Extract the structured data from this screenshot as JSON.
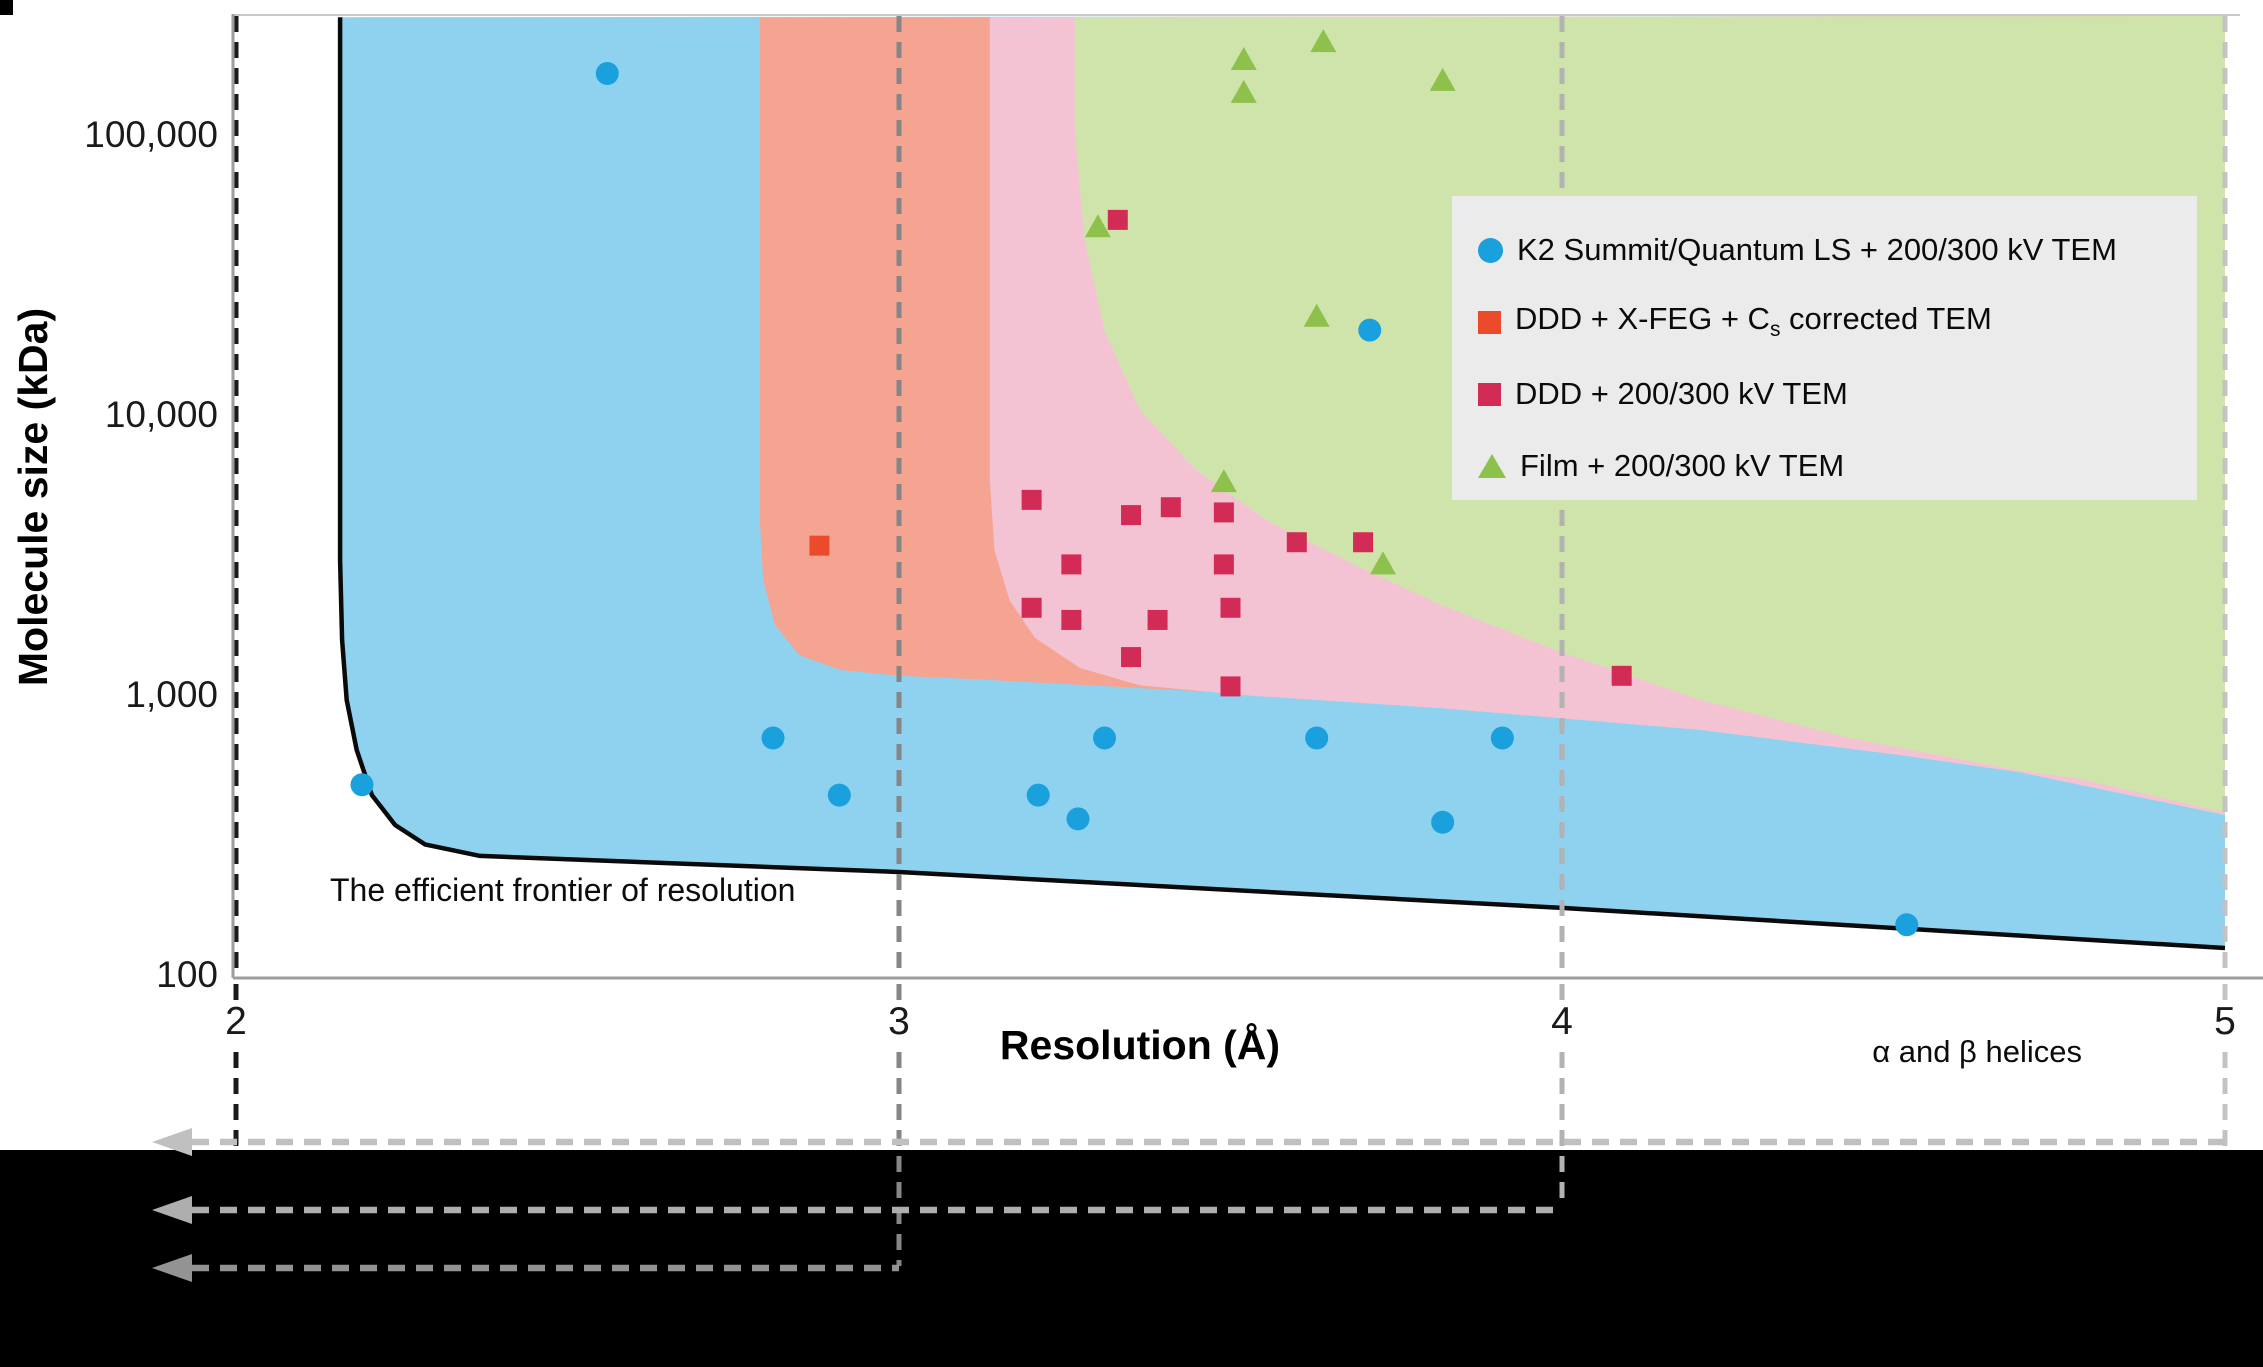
{
  "chart_data": {
    "type": "scatter",
    "xlabel": "Resolution (Å)",
    "ylabel": "Molecule size (kDa)",
    "x_ticks": [
      {
        "label": "2",
        "res": 2
      },
      {
        "label": "3",
        "res": 3
      },
      {
        "label": "4",
        "res": 4
      },
      {
        "label": "5",
        "res": 5
      }
    ],
    "y_ticks": [
      {
        "label": "100",
        "kda": 100
      },
      {
        "label": "1,000",
        "kda": 1000
      },
      {
        "label": "10,000",
        "kda": 10000
      },
      {
        "label": "100,000",
        "kda": 100000
      }
    ],
    "x_range": [
      2,
      5
    ],
    "y_range_kda": [
      100,
      270000
    ],
    "y_scale": "log",
    "grid": "off",
    "legend_position": "upper-right",
    "annotations": {
      "frontier": "The efficient frontier of resolution",
      "helices": "α and β helices"
    },
    "series": [
      {
        "name": "K2 Summit/Quantum LS + 200/300 kV TEM",
        "marker": "circle",
        "color": "#1aa0dc",
        "points": [
          [
            2.56,
            170000
          ],
          [
            2.19,
            490
          ],
          [
            2.81,
            720
          ],
          [
            2.91,
            450
          ],
          [
            3.21,
            450
          ],
          [
            3.27,
            370
          ],
          [
            3.31,
            720
          ],
          [
            3.63,
            720
          ],
          [
            3.71,
            20600
          ],
          [
            3.82,
            360
          ],
          [
            3.91,
            720
          ],
          [
            4.52,
            155
          ]
        ]
      },
      {
        "name": "DDD + X-FEG + Cs corrected TEM",
        "marker": "square",
        "color": "#eb4b2b",
        "points": [
          [
            2.88,
            3500
          ]
        ]
      },
      {
        "name": "DDD + 200/300 kV TEM",
        "marker": "square",
        "color": "#d22b56",
        "points": [
          [
            3.33,
            51000
          ],
          [
            3.2,
            5100
          ],
          [
            3.35,
            4500
          ],
          [
            3.41,
            4800
          ],
          [
            3.49,
            4600
          ],
          [
            3.6,
            3600
          ],
          [
            3.7,
            3600
          ],
          [
            3.26,
            3000
          ],
          [
            3.49,
            3000
          ],
          [
            3.2,
            2100
          ],
          [
            3.26,
            1900
          ],
          [
            3.39,
            1900
          ],
          [
            3.5,
            2100
          ],
          [
            3.35,
            1400
          ],
          [
            3.5,
            1100
          ],
          [
            4.09,
            1200
          ]
        ]
      },
      {
        "name": "Film + 200/300 kV TEM",
        "marker": "triangle",
        "color": "#8dc14b",
        "points": [
          [
            3.52,
            190000
          ],
          [
            3.64,
            220000
          ],
          [
            3.52,
            145000
          ],
          [
            3.82,
            160000
          ],
          [
            3.3,
            48000
          ],
          [
            3.63,
            23000
          ],
          [
            3.49,
            5900
          ],
          [
            3.73,
            3000
          ]
        ]
      }
    ],
    "regions": [
      {
        "name": "k2-region",
        "fill": "#8fd2ef",
        "boundary": [
          [
            2.157,
            270000
          ],
          [
            2.157,
            3100
          ],
          [
            2.16,
            1610
          ],
          [
            2.167,
            983
          ],
          [
            2.182,
            652
          ],
          [
            2.205,
            450
          ],
          [
            2.24,
            352
          ],
          [
            2.285,
            300
          ],
          [
            2.368,
            273
          ],
          [
            3.0,
            239
          ],
          [
            4.0,
            178
          ],
          [
            5.0,
            128
          ]
        ]
      },
      {
        "name": "xfeg-region",
        "fill": "#f5a492",
        "boundary": [
          [
            2.79,
            270000
          ],
          [
            2.79,
            4320
          ],
          [
            2.795,
            2640
          ],
          [
            2.813,
            1820
          ],
          [
            2.85,
            1420
          ],
          [
            2.911,
            1260
          ],
          [
            3.0,
            1200
          ],
          [
            3.137,
            1160
          ],
          [
            3.816,
            951
          ],
          [
            4.208,
            795
          ],
          [
            4.509,
            651
          ],
          [
            4.781,
            517
          ],
          [
            5.0,
            392
          ]
        ]
      },
      {
        "name": "ddd-region",
        "fill": "#f4c3d3",
        "boundary": [
          [
            3.137,
            270000
          ],
          [
            3.137,
            6010
          ],
          [
            3.144,
            3370
          ],
          [
            3.167,
            2230
          ],
          [
            3.205,
            1640
          ],
          [
            3.273,
            1280
          ],
          [
            3.363,
            1110
          ],
          [
            3.529,
            1020
          ],
          [
            3.816,
            920
          ],
          [
            4.208,
            769
          ],
          [
            4.509,
            626
          ],
          [
            4.69,
            543
          ],
          [
            5.0,
            382
          ]
        ]
      },
      {
        "name": "film-region",
        "fill": "#cfe4ab",
        "boundary": [
          [
            3.265,
            270000
          ],
          [
            3.265,
            107000
          ],
          [
            3.28,
            43300
          ],
          [
            3.31,
            20600
          ],
          [
            3.363,
            10700
          ],
          [
            3.449,
            6500
          ],
          [
            3.559,
            4250
          ],
          [
            3.695,
            2930
          ],
          [
            3.816,
            2160
          ],
          [
            3.981,
            1510
          ],
          [
            4.208,
            986
          ],
          [
            4.434,
            719
          ],
          [
            4.69,
            551
          ],
          [
            4.781,
            515
          ],
          [
            5.0,
            389
          ]
        ]
      }
    ],
    "frontier_color": "#0a0a0a",
    "reference_lines": [
      {
        "res": 2,
        "color": "#1a1a1a",
        "below_to": 1146
      },
      {
        "res": 3,
        "color": "#868686",
        "below_to": 1266
      },
      {
        "res": 4,
        "color": "#b2b2b2",
        "below_to": 1208
      },
      {
        "res": 5,
        "color": "#c3c3c3",
        "below_to": 1146
      }
    ],
    "bottom_arrows": [
      {
        "y": 1142,
        "from_res": 5,
        "color": "#c0c0c0"
      },
      {
        "y": 1210,
        "from_res": 4,
        "color": "#aeaeae"
      },
      {
        "y": 1268,
        "from_res": 3,
        "color": "#939393"
      }
    ]
  },
  "legend": {
    "background": "#ebebeb",
    "items": [
      {
        "pre": "K2 Summit/Quantum LS + 200/300 kV TEM",
        "sub": "",
        "post": "",
        "marker": "circle",
        "color": "#1aa0dc"
      },
      {
        "pre": "DDD + X-FEG + C",
        "sub": "s",
        "post": " corrected TEM",
        "marker": "square",
        "color": "#eb4b2b"
      },
      {
        "pre": "DDD + 200/300 kV TEM",
        "sub": "",
        "post": "",
        "marker": "square",
        "color": "#d22b56"
      },
      {
        "pre": "Film + 200/300 kV TEM",
        "sub": "",
        "post": "",
        "marker": "triangle",
        "color": "#8dc14b"
      }
    ]
  },
  "colors": {
    "axis": "#9e9e9e",
    "plot_top_border": "#c8c8c8",
    "bottom_band": "#000000"
  }
}
